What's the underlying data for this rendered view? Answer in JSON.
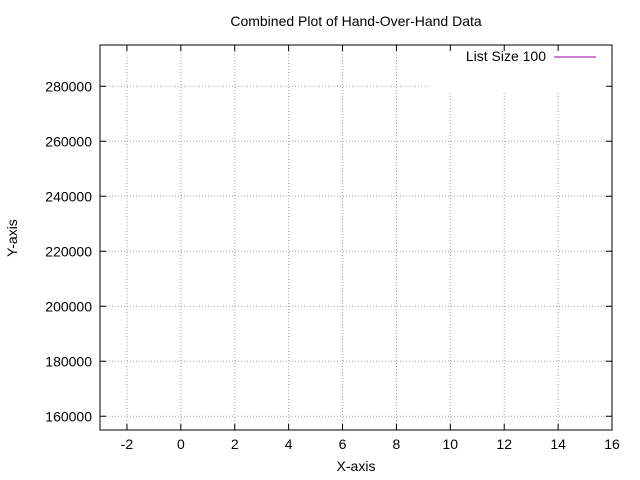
{
  "chart_data": {
    "type": "line",
    "title": "Combined Plot of Hand-Over-Hand Data",
    "xlabel": "X-axis",
    "ylabel": "Y-axis",
    "xlim": [
      -3,
      16
    ],
    "ylim": [
      155000,
      295000
    ],
    "xticks": [
      -2,
      0,
      2,
      4,
      6,
      8,
      10,
      12,
      14,
      16
    ],
    "yticks": [
      160000,
      180000,
      200000,
      220000,
      240000,
      260000,
      280000
    ],
    "grid": true,
    "legend_position": "top-right",
    "series": [
      {
        "name": "List Size 100",
        "color": "#94009e",
        "x": [],
        "y": []
      }
    ]
  }
}
